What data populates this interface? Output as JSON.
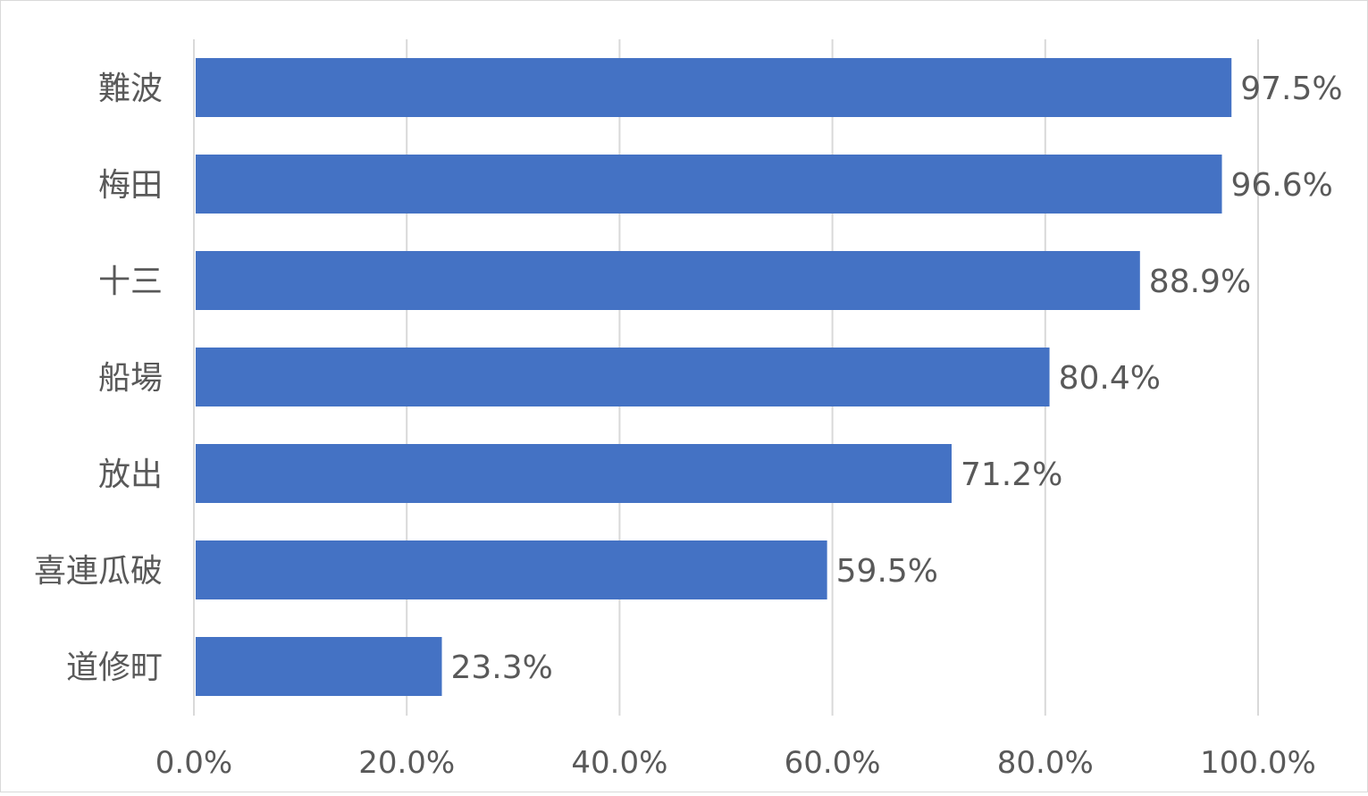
{
  "chart_data": {
    "type": "bar",
    "orientation": "horizontal",
    "title": "",
    "xlabel": "",
    "ylabel": "",
    "categories": [
      "難波",
      "梅田",
      "十三",
      "船場",
      "放出",
      "喜連瓜破",
      "道修町"
    ],
    "values": [
      97.5,
      96.6,
      88.9,
      80.4,
      71.2,
      59.5,
      23.3
    ],
    "data_labels": [
      "97.5%",
      "96.6%",
      "88.9%",
      "80.4%",
      "71.2%",
      "59.5%",
      "23.3%"
    ],
    "xlim": [
      0,
      100
    ],
    "xticks": [
      0,
      20,
      40,
      60,
      80,
      100
    ],
    "xtick_labels": [
      "0.0%",
      "20.0%",
      "40.0%",
      "60.0%",
      "80.0%",
      "100.0%"
    ],
    "grid": true,
    "legend": "none",
    "colors": {
      "bar": "#4472C4",
      "grid": "#d9d9d9",
      "text": "#595959"
    }
  }
}
